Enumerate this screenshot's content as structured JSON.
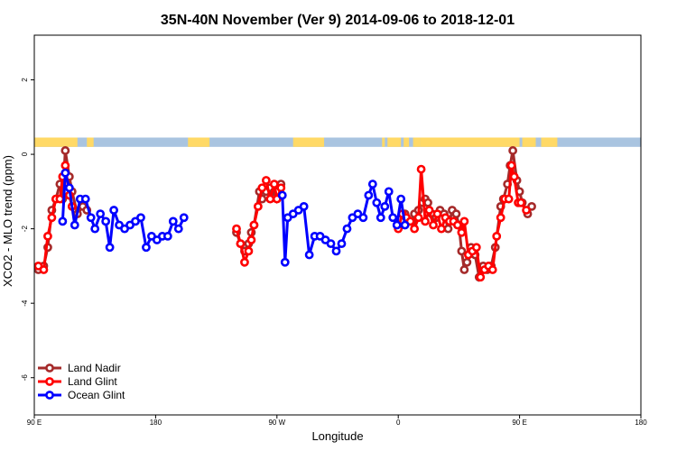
{
  "chart_data": {
    "type": "line",
    "title": "35N-40N November (Ver 9)   2014-09-06 to 2018-12-01",
    "xlabel": "Longitude",
    "ylabel": "XCO2 - MLO trend (ppm)",
    "xlim": [
      90,
      540
    ],
    "ylim": [
      -7,
      3.2
    ],
    "x_ticks": [
      {
        "value": 90,
        "label": "90 E"
      },
      {
        "value": 180,
        "label": "180"
      },
      {
        "value": 270,
        "label": "90 W"
      },
      {
        "value": 360,
        "label": "0"
      },
      {
        "value": 450,
        "label": "90 E"
      },
      {
        "value": 540,
        "label": "180"
      }
    ],
    "y_ticks": [
      {
        "value": 2,
        "label": "2"
      },
      {
        "value": 0,
        "label": "0"
      },
      {
        "value": -2,
        "label": "-2"
      },
      {
        "value": -4,
        "label": "-4"
      },
      {
        "value": -6,
        "label": "-6"
      }
    ],
    "land_mask": {
      "y_range": [
        0.2,
        0.45
      ],
      "land_color": "#ffd966",
      "ocean_color": "#a9c4e0",
      "land_intervals": [
        [
          90,
          122
        ],
        [
          129,
          134
        ],
        [
          204,
          220
        ],
        [
          282,
          305
        ],
        [
          348,
          350
        ],
        [
          352,
          362
        ],
        [
          364,
          368
        ],
        [
          371,
          376
        ],
        [
          376,
          450
        ],
        [
          452,
          462
        ],
        [
          466,
          478
        ]
      ]
    },
    "legend_position": "bottom-left",
    "series": [
      {
        "name": "Land Nadir",
        "color": "#a52a2a",
        "points": [
          [
            93,
            -3.1
          ],
          [
            97,
            -3.0
          ],
          [
            100,
            -2.5
          ],
          [
            103,
            -1.5
          ],
          [
            106,
            -1.2
          ],
          [
            109,
            -0.8
          ],
          [
            111,
            -1.2
          ],
          [
            113,
            0.1
          ],
          [
            116,
            -0.6
          ],
          [
            118,
            -1.0
          ],
          [
            122,
            -1.6
          ],
          [
            126,
            -1.4
          ],
          [
            129,
            -1.5
          ],
          [
            240,
            -2.1
          ],
          [
            243,
            -2.4
          ],
          [
            246,
            -2.6
          ],
          [
            249,
            -2.4
          ],
          [
            251,
            -2.1
          ],
          [
            253,
            -1.9
          ],
          [
            257,
            -1.0
          ],
          [
            259,
            -1.2
          ],
          [
            262,
            -1.0
          ],
          [
            265,
            -0.9
          ],
          [
            268,
            -1.0
          ],
          [
            270,
            -1.0
          ],
          [
            273,
            -0.8
          ],
          [
            365,
            -1.6
          ],
          [
            368,
            -1.8
          ],
          [
            370,
            -1.8
          ],
          [
            372,
            -1.6
          ],
          [
            375,
            -1.5
          ],
          [
            378,
            -1.3
          ],
          [
            380,
            -1.2
          ],
          [
            382,
            -1.3
          ],
          [
            385,
            -1.6
          ],
          [
            388,
            -1.7
          ],
          [
            391,
            -1.5
          ],
          [
            394,
            -1.6
          ],
          [
            397,
            -2.0
          ],
          [
            400,
            -1.5
          ],
          [
            403,
            -1.6
          ],
          [
            405,
            -1.9
          ],
          [
            407,
            -2.6
          ],
          [
            409,
            -3.1
          ],
          [
            411,
            -2.9
          ],
          [
            414,
            -2.5
          ],
          [
            417,
            -2.7
          ],
          [
            420,
            -3.3
          ],
          [
            423,
            -3.0
          ],
          [
            426,
            -3.1
          ],
          [
            429,
            -3.0
          ],
          [
            432,
            -2.5
          ],
          [
            436,
            -1.4
          ],
          [
            438,
            -1.2
          ],
          [
            441,
            -0.8
          ],
          [
            443,
            -0.3
          ],
          [
            445,
            0.1
          ],
          [
            448,
            -0.7
          ],
          [
            450,
            -1.0
          ],
          [
            452,
            -1.3
          ],
          [
            456,
            -1.6
          ],
          [
            459,
            -1.4
          ]
        ]
      },
      {
        "name": "Land Glint",
        "color": "#ff0000",
        "points": [
          [
            93,
            -3.0
          ],
          [
            97,
            -3.1
          ],
          [
            100,
            -2.2
          ],
          [
            103,
            -1.7
          ],
          [
            106,
            -1.2
          ],
          [
            109,
            -1.2
          ],
          [
            111,
            -0.6
          ],
          [
            113,
            -0.3
          ],
          [
            116,
            -1.1
          ],
          [
            118,
            -1.4
          ],
          [
            240,
            -2.0
          ],
          [
            243,
            -2.4
          ],
          [
            246,
            -2.9
          ],
          [
            249,
            -2.6
          ],
          [
            251,
            -2.3
          ],
          [
            253,
            -1.9
          ],
          [
            256,
            -1.4
          ],
          [
            259,
            -0.9
          ],
          [
            262,
            -0.7
          ],
          [
            265,
            -1.2
          ],
          [
            268,
            -0.8
          ],
          [
            270,
            -1.2
          ],
          [
            273,
            -0.9
          ],
          [
            360,
            -2.0
          ],
          [
            363,
            -1.6
          ],
          [
            366,
            -1.7
          ],
          [
            369,
            -1.8
          ],
          [
            372,
            -2.0
          ],
          [
            375,
            -1.7
          ],
          [
            377,
            -0.4
          ],
          [
            380,
            -1.8
          ],
          [
            383,
            -1.5
          ],
          [
            386,
            -1.9
          ],
          [
            389,
            -1.6
          ],
          [
            392,
            -2.0
          ],
          [
            395,
            -1.7
          ],
          [
            398,
            -1.8
          ],
          [
            401,
            -1.8
          ],
          [
            404,
            -1.9
          ],
          [
            407,
            -2.1
          ],
          [
            409,
            -1.8
          ],
          [
            412,
            -2.7
          ],
          [
            415,
            -2.6
          ],
          [
            418,
            -2.5
          ],
          [
            421,
            -3.3
          ],
          [
            424,
            -3.1
          ],
          [
            427,
            -3.0
          ],
          [
            430,
            -3.1
          ],
          [
            433,
            -2.2
          ],
          [
            436,
            -1.7
          ],
          [
            439,
            -1.2
          ],
          [
            442,
            -1.2
          ],
          [
            444,
            -0.3
          ],
          [
            446,
            -0.6
          ],
          [
            449,
            -1.3
          ],
          [
            451,
            -1.3
          ],
          [
            455,
            -1.5
          ]
        ]
      },
      {
        "name": "Ocean Glint",
        "color": "#0000ff",
        "points": [
          [
            111,
            -1.8
          ],
          [
            113,
            -0.5
          ],
          [
            116,
            -0.9
          ],
          [
            120,
            -1.9
          ],
          [
            124,
            -1.2
          ],
          [
            128,
            -1.2
          ],
          [
            132,
            -1.7
          ],
          [
            135,
            -2.0
          ],
          [
            139,
            -1.6
          ],
          [
            143,
            -1.8
          ],
          [
            146,
            -2.5
          ],
          [
            149,
            -1.5
          ],
          [
            153,
            -1.9
          ],
          [
            157,
            -2.0
          ],
          [
            161,
            -1.9
          ],
          [
            165,
            -1.8
          ],
          [
            169,
            -1.7
          ],
          [
            173,
            -2.5
          ],
          [
            177,
            -2.2
          ],
          [
            181,
            -2.3
          ],
          [
            185,
            -2.2
          ],
          [
            189,
            -2.2
          ],
          [
            193,
            -1.8
          ],
          [
            197,
            -2.0
          ],
          [
            201,
            -1.7
          ],
          [
            274,
            -1.1
          ],
          [
            278,
            -1.7
          ],
          [
            282,
            -1.6
          ],
          [
            286,
            -1.5
          ],
          [
            290,
            -1.4
          ],
          [
            294,
            -2.7
          ],
          [
            298,
            -2.2
          ],
          [
            302,
            -2.2
          ],
          [
            306,
            -2.3
          ],
          [
            310,
            -2.4
          ],
          [
            314,
            -2.6
          ],
          [
            318,
            -2.4
          ],
          [
            322,
            -2.0
          ],
          [
            326,
            -1.7
          ],
          [
            330,
            -1.6
          ],
          [
            334,
            -1.7
          ],
          [
            338,
            -1.1
          ],
          [
            341,
            -0.8
          ],
          [
            344,
            -1.3
          ],
          [
            347,
            -1.7
          ],
          [
            350,
            -1.4
          ],
          [
            353,
            -1.0
          ],
          [
            356,
            -1.7
          ],
          [
            359,
            -1.9
          ],
          [
            362,
            -1.2
          ],
          [
            365,
            -1.9
          ],
          [
            276,
            -2.9
          ]
        ]
      }
    ],
    "legend": [
      {
        "name": "Land Nadir",
        "color": "#a52a2a"
      },
      {
        "name": "Land Glint",
        "color": "#ff0000"
      },
      {
        "name": "Ocean Glint",
        "color": "#0000ff"
      }
    ]
  }
}
